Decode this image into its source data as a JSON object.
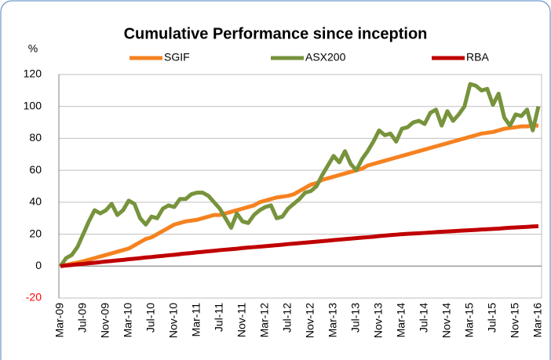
{
  "chart_data": {
    "type": "line",
    "title": "Cumulative Performance since inception",
    "ylabel": "%",
    "categories": [
      "Mar-09",
      null,
      null,
      null,
      "Jul-09",
      null,
      null,
      null,
      "Nov-09",
      null,
      null,
      null,
      "Mar-10",
      null,
      null,
      null,
      "Jul-10",
      null,
      null,
      null,
      "Nov-10",
      null,
      null,
      null,
      "Mar-11",
      null,
      null,
      null,
      "Jul-11",
      null,
      null,
      null,
      "Nov-11",
      null,
      null,
      null,
      "Mar-12",
      null,
      null,
      null,
      "Jul-12",
      null,
      null,
      null,
      "Nov-12",
      null,
      null,
      null,
      "Mar-13",
      null,
      null,
      null,
      "Jul-13",
      null,
      null,
      null,
      "Nov-13",
      null,
      null,
      null,
      "Mar-14",
      null,
      null,
      null,
      "Jul-14",
      null,
      null,
      null,
      "Nov-14",
      null,
      null,
      null,
      "Mar-15",
      null,
      null,
      null,
      "Jul-15",
      null,
      null,
      null,
      "Nov-15",
      null,
      null,
      null,
      "Mar-16"
    ],
    "series": [
      {
        "name": "SGIF",
        "color": "#f58220",
        "values": [
          0,
          0.7,
          1.5,
          2.2,
          3,
          4,
          5,
          6,
          7,
          8,
          9,
          10,
          11,
          13,
          15,
          17,
          18,
          20,
          22,
          24,
          26,
          27,
          28,
          28.5,
          29,
          30,
          31,
          32,
          32,
          33,
          34,
          35,
          36,
          37,
          38,
          40,
          41,
          42,
          43,
          43.5,
          44,
          45,
          47,
          49,
          51,
          52,
          54,
          55,
          56,
          57,
          58,
          59,
          60,
          61,
          63,
          64,
          65,
          66,
          67,
          68,
          69,
          70,
          71,
          72,
          73,
          74,
          75,
          76,
          77,
          78,
          79,
          80,
          81,
          82,
          83,
          83.5,
          84,
          85,
          86,
          86.5,
          87,
          87.5,
          87.5,
          88,
          88
        ]
      },
      {
        "name": "ASX200",
        "color": "#77933c",
        "values": [
          0,
          5,
          7,
          12,
          20,
          28,
          35,
          33,
          35,
          39,
          32,
          35,
          41,
          39,
          30,
          26,
          31,
          30,
          36,
          38,
          37,
          42,
          42,
          45,
          46,
          46,
          44,
          40,
          36,
          30,
          24,
          33,
          28,
          27,
          32,
          35,
          37,
          38,
          30,
          31,
          36,
          39,
          42,
          46,
          47,
          50,
          57,
          63,
          69,
          65,
          72,
          64,
          60,
          67,
          72,
          78,
          85,
          82,
          83,
          78,
          86,
          87,
          90,
          91,
          89,
          96,
          98,
          88,
          97,
          91,
          95,
          100,
          114,
          113,
          110,
          111,
          101,
          108,
          93,
          88,
          95,
          94,
          98,
          85,
          100
        ]
      },
      {
        "name": "RBA",
        "color": "#c00000",
        "values": [
          0,
          0.4,
          0.7,
          1.1,
          1.4,
          1.8,
          2.1,
          2.5,
          2.9,
          3.2,
          3.6,
          3.9,
          4.3,
          4.6,
          5,
          5.4,
          5.7,
          6.1,
          6.4,
          6.8,
          7.1,
          7.5,
          7.9,
          8.2,
          8.6,
          8.9,
          9.3,
          9.6,
          10,
          10.3,
          10.6,
          10.9,
          11.3,
          11.6,
          11.9,
          12.2,
          12.5,
          12.8,
          13.1,
          13.4,
          13.8,
          14.1,
          14.4,
          14.7,
          15,
          15.3,
          15.6,
          15.9,
          16.3,
          16.6,
          16.9,
          17.2,
          17.5,
          17.8,
          18.1,
          18.4,
          18.8,
          19.1,
          19.4,
          19.7,
          20,
          20.2,
          20.4,
          20.6,
          20.8,
          21,
          21.3,
          21.5,
          21.7,
          21.9,
          22.1,
          22.3,
          22.5,
          22.7,
          22.9,
          23.1,
          23.3,
          23.5,
          23.8,
          24,
          24.2,
          24.4,
          24.6,
          24.8,
          25
        ]
      }
    ],
    "ylim": [
      -20,
      120
    ],
    "yticks": [
      -20,
      0,
      20,
      40,
      60,
      80,
      100,
      120
    ],
    "negative_tick_color": "#ff0000",
    "grid": true,
    "legend": "top"
  }
}
